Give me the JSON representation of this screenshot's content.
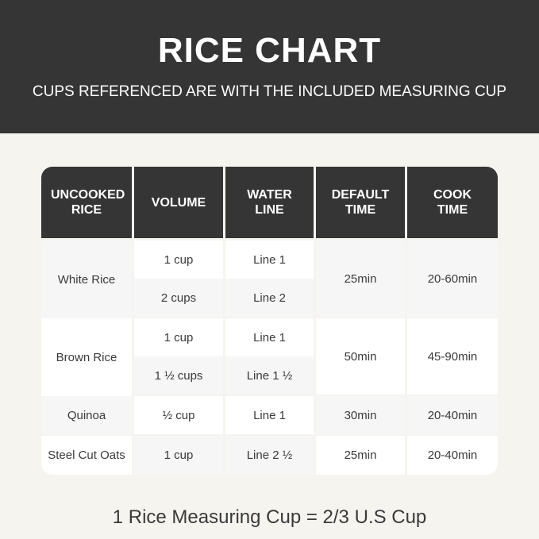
{
  "header": {
    "title": "RICE CHART",
    "subtitle": "CUPS REFERENCED ARE WITH THE INCLUDED MEASURING CUP"
  },
  "table": {
    "columns": [
      "UNCOOKED RICE",
      "VOLUME",
      "WATER LINE",
      "DEFAULT TIME",
      "COOK TIME"
    ],
    "rows": [
      {
        "rice": "White Rice",
        "volumes": [
          "1 cup",
          "2 cups"
        ],
        "water_lines": [
          "Line 1",
          "Line 2"
        ],
        "default_time": "25min",
        "cook_time": "20-60min"
      },
      {
        "rice": "Brown Rice",
        "volumes": [
          "1 cup",
          "1 ½ cups"
        ],
        "water_lines": [
          "Line 1",
          "Line 1 ½"
        ],
        "default_time": "50min",
        "cook_time": "45-90min"
      },
      {
        "rice": "Quinoa",
        "volumes": [
          "½ cup"
        ],
        "water_lines": [
          "Line 1"
        ],
        "default_time": "30min",
        "cook_time": "20-40min"
      },
      {
        "rice": "Steel Cut Oats",
        "volumes": [
          "1 cup"
        ],
        "water_lines": [
          "Line 2 ½"
        ],
        "default_time": "25min",
        "cook_time": "20-40min"
      }
    ]
  },
  "footer": {
    "note": "1 Rice Measuring Cup = 2/3 U.S Cup"
  },
  "colors": {
    "header_bg": "#353535",
    "page_bg": "#f5f4ef",
    "cell_alt": "#f6f6f6",
    "cell": "#ffffff"
  }
}
